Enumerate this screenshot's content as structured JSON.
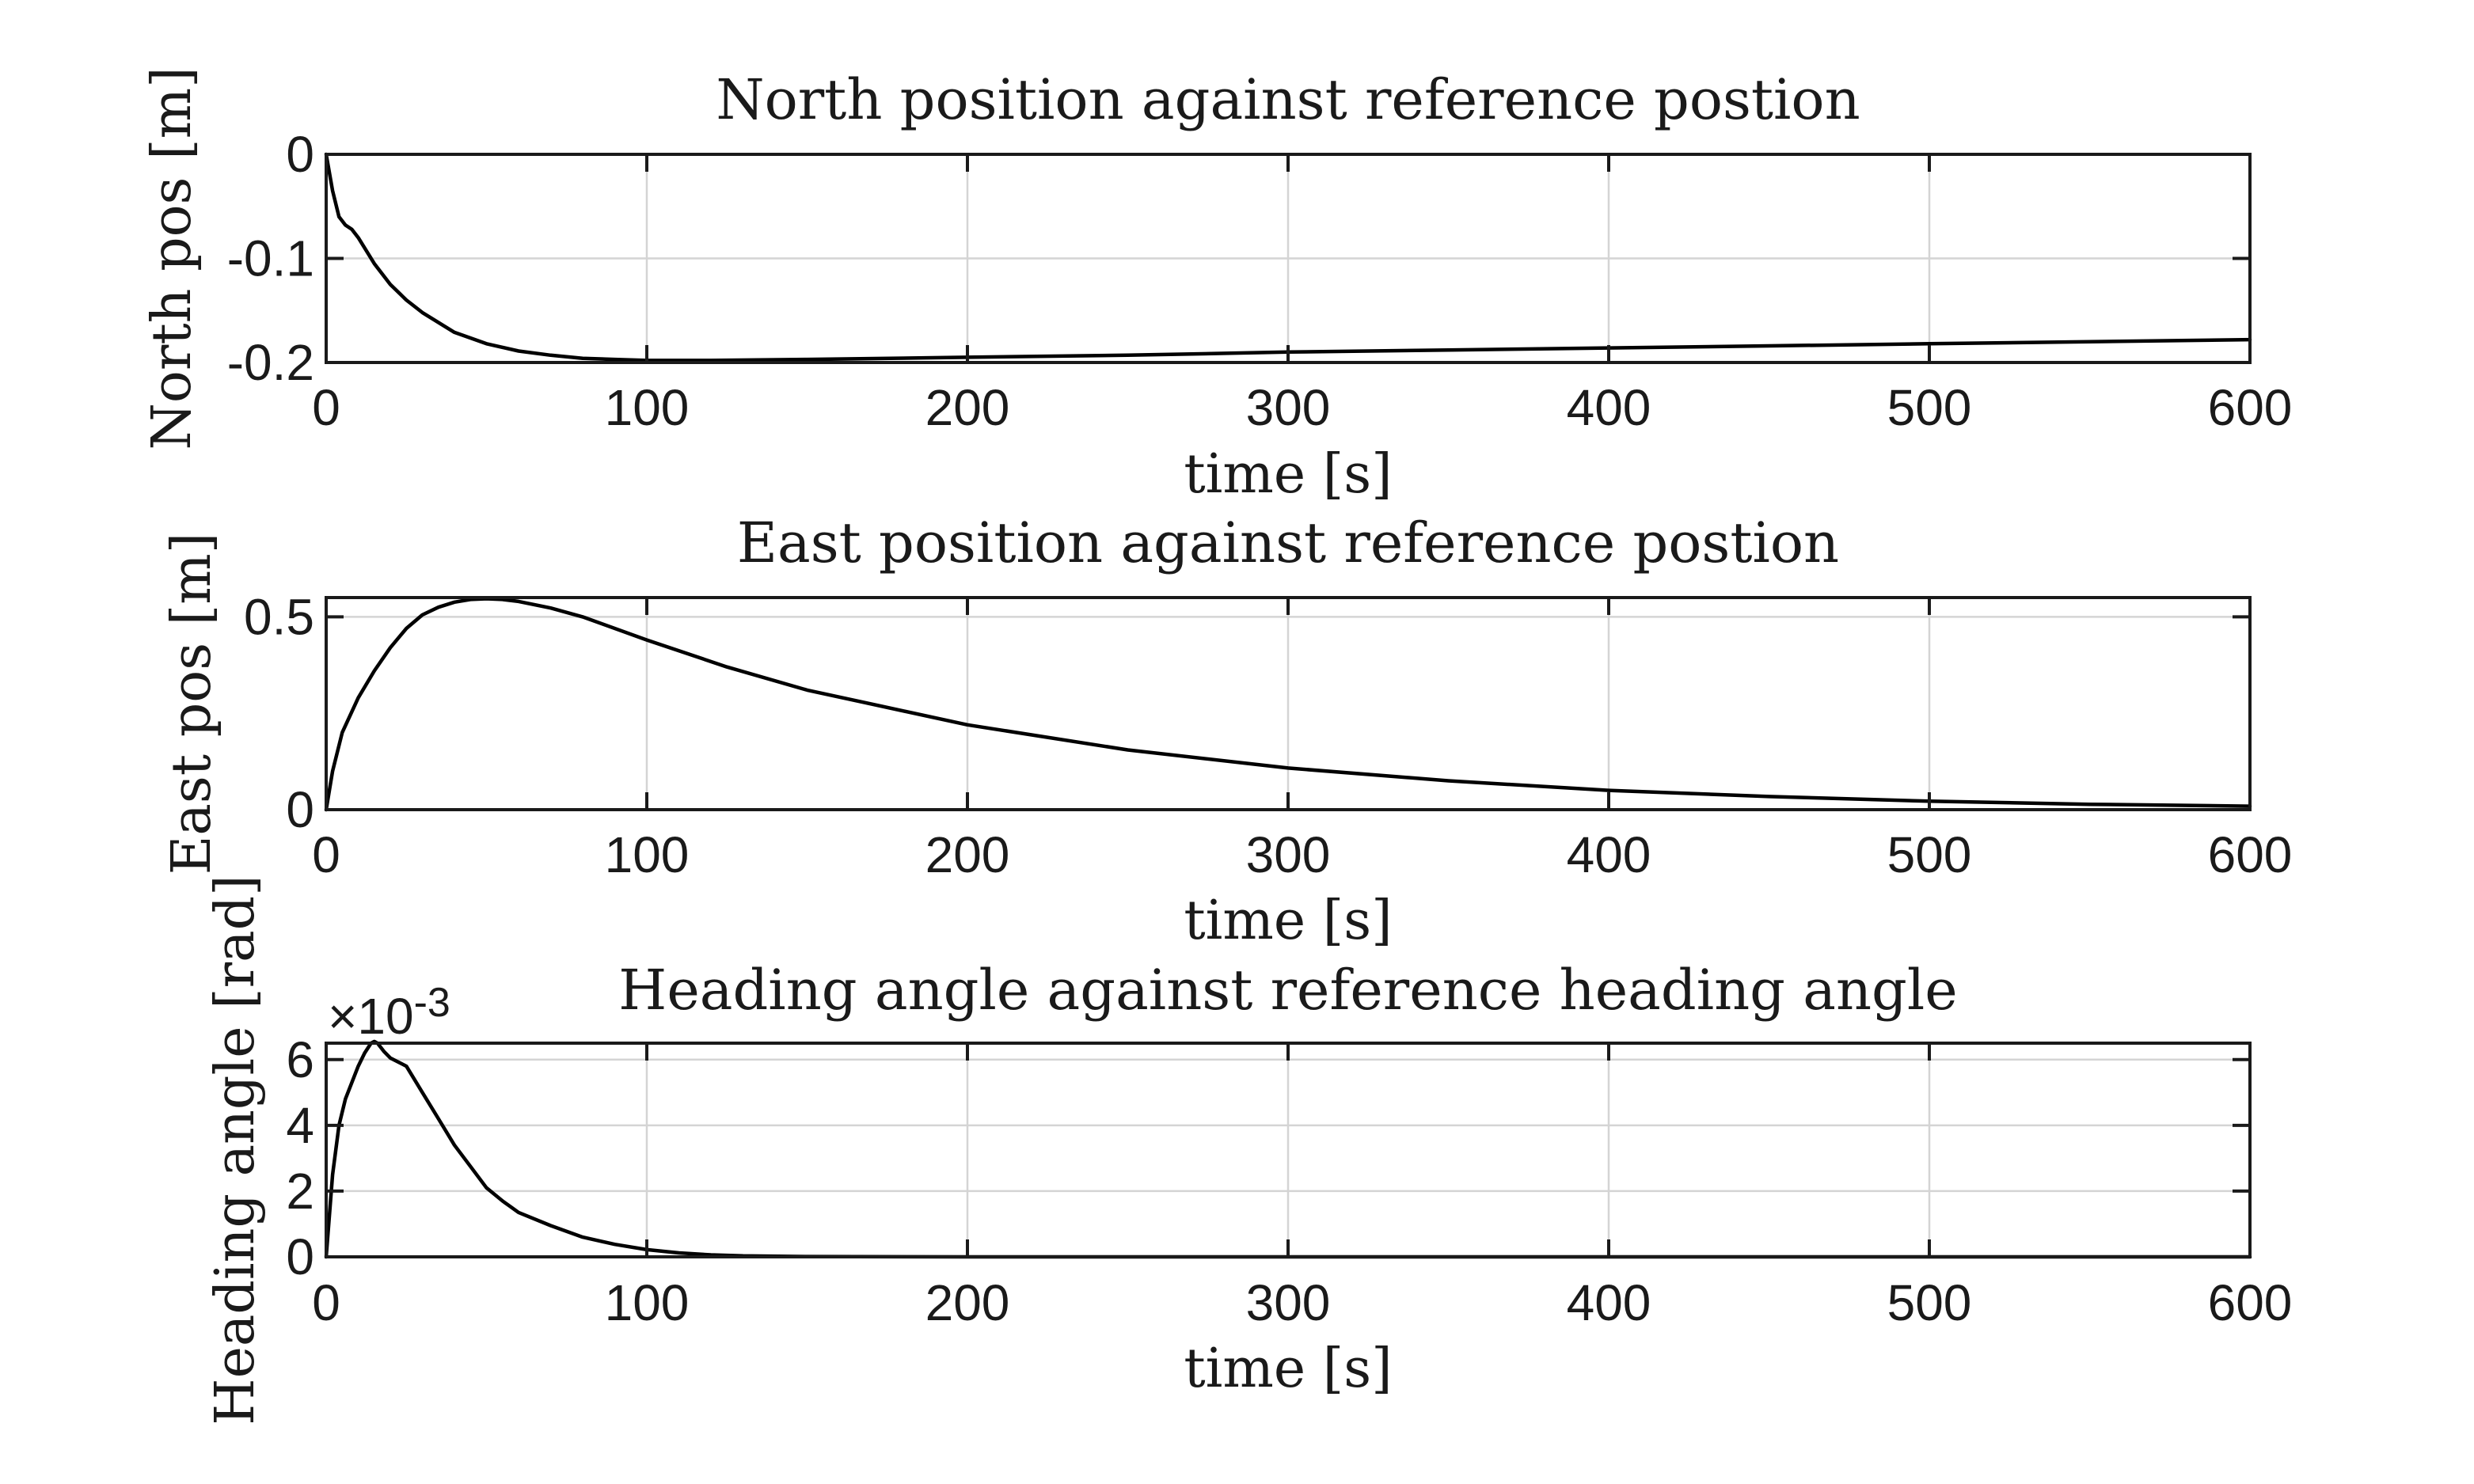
{
  "chart_data": [
    {
      "type": "line",
      "title": "North position against reference postion",
      "xlabel": "time [s]",
      "ylabel": "North pos [m]",
      "xlim": [
        0,
        600
      ],
      "ylim": [
        -0.2,
        0
      ],
      "xticks": [
        0,
        100,
        200,
        300,
        400,
        500,
        600
      ],
      "xtick_labels": [
        "0",
        "100",
        "200",
        "300",
        "400",
        "500",
        "600"
      ],
      "yticks": [
        0,
        -0.1,
        -0.2
      ],
      "ytick_labels": [
        "0",
        "-0.1",
        "-0.2"
      ],
      "exponent_label": "",
      "grid": true,
      "series": [
        {
          "x": [
            0,
            2,
            4,
            6,
            8,
            10,
            15,
            20,
            25,
            30,
            40,
            50,
            60,
            70,
            80,
            90,
            100,
            110,
            120,
            150,
            200,
            250,
            300,
            350,
            400,
            450,
            500,
            550,
            600
          ],
          "y": [
            0,
            -0.035,
            -0.06,
            -0.068,
            -0.072,
            -0.08,
            -0.105,
            -0.125,
            -0.14,
            -0.152,
            -0.171,
            -0.182,
            -0.189,
            -0.193,
            -0.196,
            -0.197,
            -0.198,
            -0.198,
            -0.198,
            -0.197,
            -0.195,
            -0.193,
            -0.19,
            -0.188,
            -0.186,
            -0.184,
            -0.182,
            -0.18,
            -0.178
          ]
        }
      ]
    },
    {
      "type": "line",
      "title": "East position against reference postion",
      "xlabel": "time [s]",
      "ylabel": "East pos [m]",
      "xlim": [
        0,
        600
      ],
      "ylim": [
        0,
        0.55
      ],
      "xticks": [
        0,
        100,
        200,
        300,
        400,
        500,
        600
      ],
      "xtick_labels": [
        "0",
        "100",
        "200",
        "300",
        "400",
        "500",
        "600"
      ],
      "yticks": [
        0.5,
        0
      ],
      "ytick_labels": [
        "0.5",
        "0"
      ],
      "exponent_label": "",
      "grid": true,
      "series": [
        {
          "x": [
            0,
            2,
            5,
            10,
            15,
            20,
            25,
            30,
            35,
            40,
            45,
            50,
            55,
            60,
            70,
            80,
            100,
            125,
            150,
            200,
            250,
            300,
            350,
            400,
            450,
            500,
            550,
            600
          ],
          "y": [
            0,
            0.1,
            0.2,
            0.29,
            0.36,
            0.42,
            0.47,
            0.505,
            0.525,
            0.538,
            0.545,
            0.547,
            0.545,
            0.54,
            0.523,
            0.5,
            0.44,
            0.37,
            0.31,
            0.22,
            0.155,
            0.108,
            0.075,
            0.05,
            0.034,
            0.022,
            0.014,
            0.009
          ]
        }
      ]
    },
    {
      "type": "line",
      "title": "Heading angle against reference heading angle",
      "xlabel": "time [s]",
      "ylabel": "Heading angle [rad]",
      "xlim": [
        0,
        600
      ],
      "ylim": [
        0,
        6.5
      ],
      "y_scale_note": "×10^-3",
      "xticks": [
        0,
        100,
        200,
        300,
        400,
        500,
        600
      ],
      "xtick_labels": [
        "0",
        "100",
        "200",
        "300",
        "400",
        "500",
        "600"
      ],
      "yticks": [
        0,
        2,
        4,
        6
      ],
      "ytick_labels": [
        "0",
        "2",
        "4",
        "6"
      ],
      "exponent_base": "×10",
      "exponent_power": "-3",
      "grid": true,
      "series": [
        {
          "x": [
            0,
            2,
            4,
            6,
            8,
            10,
            12,
            14,
            15,
            16,
            18,
            20,
            25,
            30,
            35,
            40,
            45,
            50,
            55,
            60,
            70,
            80,
            90,
            100,
            110,
            120,
            130,
            150,
            200,
            300,
            400,
            500,
            600
          ],
          "y": [
            0,
            2.5,
            4.0,
            4.8,
            5.3,
            5.8,
            6.2,
            6.5,
            6.55,
            6.5,
            6.25,
            6.05,
            5.8,
            5.0,
            4.2,
            3.4,
            2.75,
            2.1,
            1.7,
            1.35,
            0.95,
            0.6,
            0.38,
            0.22,
            0.12,
            0.06,
            0.03,
            0.01,
            0,
            0,
            0,
            0,
            0
          ]
        }
      ]
    }
  ]
}
